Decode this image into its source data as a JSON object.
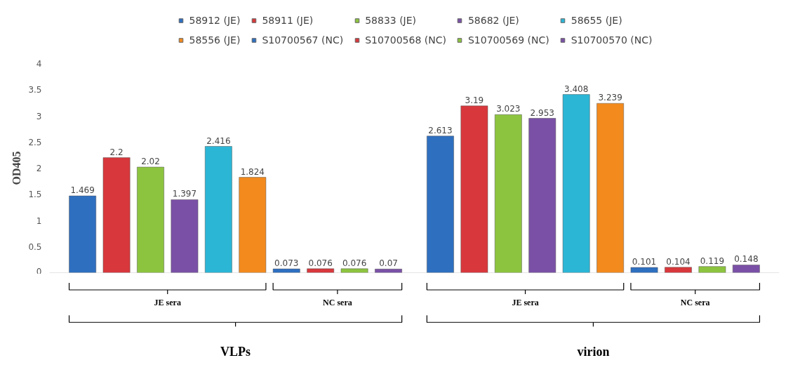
{
  "chart_data": {
    "type": "bar",
    "ylabel": "OD405",
    "categories": [
      "VLPs",
      "virion"
    ],
    "series": [
      {
        "name": "58912 (JE)",
        "color": "#2e6fc0",
        "values": [
          1.469,
          2.613
        ]
      },
      {
        "name": "58911 (JE)",
        "color": "#d8383c",
        "values": [
          2.2,
          3.19
        ]
      },
      {
        "name": "58833 (JE)",
        "color": "#8dc43f",
        "values": [
          2.02,
          3.023
        ]
      },
      {
        "name": "58682 (JE)",
        "color": "#7a50a6",
        "values": [
          1.397,
          2.953
        ]
      },
      {
        "name": "58655 (JE)",
        "color": "#2bb6d6",
        "values": [
          2.416,
          3.408
        ]
      },
      {
        "name": "58556 (JE)",
        "color": "#f28a1e",
        "values": [
          1.824,
          3.239
        ]
      },
      {
        "name": "S10700567 (NC)",
        "color": "#2e6fc0",
        "values": [
          0.073,
          0.101
        ]
      },
      {
        "name": "S10700568 (NC)",
        "color": "#d8383c",
        "values": [
          0.076,
          0.104
        ]
      },
      {
        "name": "S10700569 (NC)",
        "color": "#8dc43f",
        "values": [
          0.076,
          0.119
        ]
      },
      {
        "name": "S10700570 (NC)",
        "color": "#7a50a6",
        "values": [
          0.07,
          0.148
        ]
      }
    ],
    "annotations": [
      "JE sera",
      "NC sera",
      "JE sera",
      "NC sera"
    ],
    "ylim": [
      0,
      4
    ],
    "yticks": [
      0,
      0.5,
      1,
      1.5,
      2,
      2.5,
      3,
      3.5,
      4
    ],
    "data_labels": true,
    "grid": false,
    "legend": "top"
  }
}
